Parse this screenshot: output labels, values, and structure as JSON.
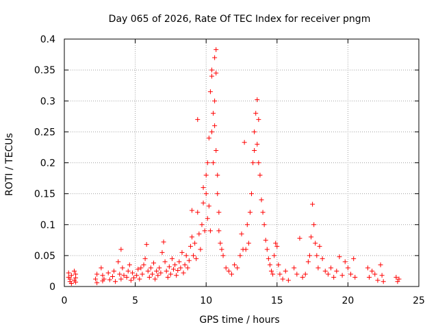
{
  "chart_data": {
    "type": "scatter",
    "title": "Day 065 of 2026, Rate Of TEC Index for receiver pngm",
    "xlabel": "GPS time / hours",
    "ylabel": "ROTI / TECUs",
    "xlim": [
      0,
      25
    ],
    "ylim": [
      0,
      0.4
    ],
    "xticks": [
      0,
      5,
      10,
      15,
      20,
      25
    ],
    "yticks": [
      0,
      0.05,
      0.1,
      0.15,
      0.2,
      0.25,
      0.3,
      0.35,
      0.4
    ],
    "xtick_labels": [
      "0",
      "5",
      "10",
      "15",
      "20",
      "25"
    ],
    "ytick_labels": [
      "0",
      "0.05",
      "0.1",
      "0.15",
      "0.2",
      "0.25",
      "0.3",
      "0.35",
      "0.4"
    ],
    "grid": true,
    "marker": "+",
    "color": "#ff0000",
    "series": [
      {
        "name": "ROTI",
        "points": [
          [
            0.3,
            0.015
          ],
          [
            0.3,
            0.022
          ],
          [
            0.4,
            0.008
          ],
          [
            0.4,
            0.012
          ],
          [
            0.5,
            0.018
          ],
          [
            0.5,
            0.005
          ],
          [
            0.7,
            0.01
          ],
          [
            0.7,
            0.025
          ],
          [
            0.8,
            0.014
          ],
          [
            0.8,
            0.007
          ],
          [
            0.8,
            0.02
          ],
          [
            2.2,
            0.012
          ],
          [
            2.3,
            0.02
          ],
          [
            2.3,
            0.006
          ],
          [
            2.6,
            0.03
          ],
          [
            2.7,
            0.018
          ],
          [
            2.7,
            0.009
          ],
          [
            2.8,
            0.012
          ],
          [
            3.1,
            0.022
          ],
          [
            3.2,
            0.011
          ],
          [
            3.4,
            0.016
          ],
          [
            3.5,
            0.025
          ],
          [
            3.6,
            0.008
          ],
          [
            3.8,
            0.04
          ],
          [
            3.9,
            0.02
          ],
          [
            4.0,
            0.06
          ],
          [
            4.0,
            0.012
          ],
          [
            4.1,
            0.03
          ],
          [
            4.2,
            0.018
          ],
          [
            4.4,
            0.015
          ],
          [
            4.5,
            0.025
          ],
          [
            4.6,
            0.035
          ],
          [
            4.7,
            0.01
          ],
          [
            4.8,
            0.022
          ],
          [
            4.9,
            0.014
          ],
          [
            5.1,
            0.018
          ],
          [
            5.2,
            0.028
          ],
          [
            5.3,
            0.012
          ],
          [
            5.4,
            0.03
          ],
          [
            5.5,
            0.02
          ],
          [
            5.6,
            0.035
          ],
          [
            5.7,
            0.045
          ],
          [
            5.8,
            0.068
          ],
          [
            5.9,
            0.025
          ],
          [
            6.0,
            0.015
          ],
          [
            6.1,
            0.03
          ],
          [
            6.2,
            0.02
          ],
          [
            6.3,
            0.038
          ],
          [
            6.4,
            0.012
          ],
          [
            6.5,
            0.025
          ],
          [
            6.6,
            0.018
          ],
          [
            6.7,
            0.03
          ],
          [
            6.8,
            0.022
          ],
          [
            6.9,
            0.055
          ],
          [
            7.0,
            0.072
          ],
          [
            7.1,
            0.04
          ],
          [
            7.2,
            0.025
          ],
          [
            7.3,
            0.015
          ],
          [
            7.4,
            0.032
          ],
          [
            7.5,
            0.02
          ],
          [
            7.6,
            0.045
          ],
          [
            7.7,
            0.028
          ],
          [
            7.8,
            0.035
          ],
          [
            7.9,
            0.018
          ],
          [
            8.0,
            0.026
          ],
          [
            8.1,
            0.04
          ],
          [
            8.2,
            0.03
          ],
          [
            8.3,
            0.055
          ],
          [
            8.4,
            0.022
          ],
          [
            8.5,
            0.035
          ],
          [
            8.6,
            0.05
          ],
          [
            8.7,
            0.03
          ],
          [
            8.8,
            0.042
          ],
          [
            8.9,
            0.065
          ],
          [
            9.0,
            0.08
          ],
          [
            9.0,
            0.123
          ],
          [
            9.1,
            0.05
          ],
          [
            9.2,
            0.07
          ],
          [
            9.3,
            0.045
          ],
          [
            9.4,
            0.12
          ],
          [
            9.4,
            0.27
          ],
          [
            9.5,
            0.085
          ],
          [
            9.6,
            0.06
          ],
          [
            9.7,
            0.1
          ],
          [
            9.8,
            0.135
          ],
          [
            9.8,
            0.16
          ],
          [
            9.9,
            0.09
          ],
          [
            10.0,
            0.15
          ],
          [
            10.0,
            0.18
          ],
          [
            10.1,
            0.11
          ],
          [
            10.1,
            0.2
          ],
          [
            10.2,
            0.13
          ],
          [
            10.2,
            0.24
          ],
          [
            10.3,
            0.09
          ],
          [
            10.3,
            0.315
          ],
          [
            10.4,
            0.35
          ],
          [
            10.4,
            0.34
          ],
          [
            10.4,
            0.25
          ],
          [
            10.5,
            0.28
          ],
          [
            10.5,
            0.2
          ],
          [
            10.6,
            0.3
          ],
          [
            10.6,
            0.26
          ],
          [
            10.6,
            0.37
          ],
          [
            10.7,
            0.383
          ],
          [
            10.7,
            0.345
          ],
          [
            10.7,
            0.22
          ],
          [
            10.8,
            0.18
          ],
          [
            10.8,
            0.15
          ],
          [
            10.9,
            0.12
          ],
          [
            10.9,
            0.09
          ],
          [
            11.0,
            0.07
          ],
          [
            11.1,
            0.06
          ],
          [
            11.2,
            0.05
          ],
          [
            11.4,
            0.03
          ],
          [
            11.6,
            0.025
          ],
          [
            11.8,
            0.02
          ],
          [
            12.0,
            0.035
          ],
          [
            12.2,
            0.03
          ],
          [
            12.4,
            0.05
          ],
          [
            12.5,
            0.085
          ],
          [
            12.6,
            0.06
          ],
          [
            12.7,
            0.233
          ],
          [
            12.8,
            0.06
          ],
          [
            12.9,
            0.1
          ],
          [
            13.0,
            0.07
          ],
          [
            13.1,
            0.12
          ],
          [
            13.2,
            0.15
          ],
          [
            13.3,
            0.2
          ],
          [
            13.4,
            0.25
          ],
          [
            13.4,
            0.22
          ],
          [
            13.5,
            0.28
          ],
          [
            13.6,
            0.302
          ],
          [
            13.6,
            0.23
          ],
          [
            13.7,
            0.27
          ],
          [
            13.7,
            0.2
          ],
          [
            13.8,
            0.18
          ],
          [
            13.9,
            0.14
          ],
          [
            14.0,
            0.12
          ],
          [
            14.1,
            0.1
          ],
          [
            14.2,
            0.075
          ],
          [
            14.3,
            0.06
          ],
          [
            14.4,
            0.045
          ],
          [
            14.5,
            0.035
          ],
          [
            14.6,
            0.025
          ],
          [
            14.7,
            0.02
          ],
          [
            14.8,
            0.05
          ],
          [
            14.9,
            0.07
          ],
          [
            15.0,
            0.065
          ],
          [
            15.1,
            0.035
          ],
          [
            15.2,
            0.02
          ],
          [
            15.4,
            0.012
          ],
          [
            15.6,
            0.025
          ],
          [
            15.8,
            0.01
          ],
          [
            16.2,
            0.03
          ],
          [
            16.4,
            0.02
          ],
          [
            16.6,
            0.078
          ],
          [
            16.8,
            0.015
          ],
          [
            17.0,
            0.02
          ],
          [
            17.2,
            0.04
          ],
          [
            17.3,
            0.05
          ],
          [
            17.4,
            0.08
          ],
          [
            17.5,
            0.133
          ],
          [
            17.6,
            0.1
          ],
          [
            17.7,
            0.07
          ],
          [
            17.8,
            0.05
          ],
          [
            17.9,
            0.03
          ],
          [
            18.0,
            0.065
          ],
          [
            18.2,
            0.045
          ],
          [
            18.4,
            0.025
          ],
          [
            18.6,
            0.02
          ],
          [
            18.8,
            0.03
          ],
          [
            19.0,
            0.015
          ],
          [
            19.2,
            0.025
          ],
          [
            19.4,
            0.048
          ],
          [
            19.6,
            0.018
          ],
          [
            19.8,
            0.04
          ],
          [
            20.0,
            0.03
          ],
          [
            20.2,
            0.02
          ],
          [
            20.4,
            0.045
          ],
          [
            20.5,
            0.015
          ],
          [
            21.4,
            0.03
          ],
          [
            21.5,
            0.015
          ],
          [
            21.7,
            0.025
          ],
          [
            21.9,
            0.02
          ],
          [
            22.1,
            0.01
          ],
          [
            22.3,
            0.035
          ],
          [
            22.4,
            0.018
          ],
          [
            22.5,
            0.008
          ],
          [
            23.4,
            0.015
          ],
          [
            23.5,
            0.008
          ],
          [
            23.6,
            0.012
          ]
        ]
      }
    ]
  }
}
